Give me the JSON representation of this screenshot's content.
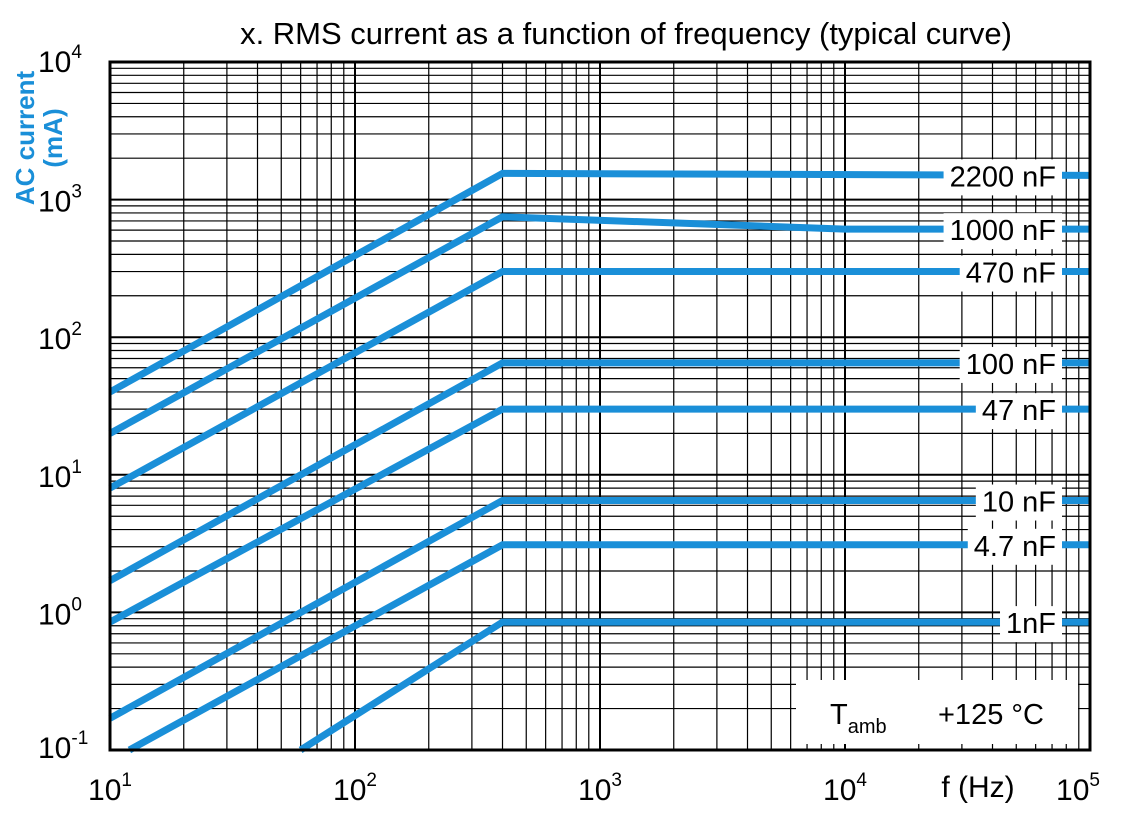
{
  "chart_data": {
    "type": "line",
    "title": "x. RMS current as a function of frequency (typical curve)",
    "ylabel": "AC current",
    "yunit": "(mA)",
    "xlabel": "f (Hz)",
    "xscale": "log",
    "yscale": "log",
    "xlim": [
      10,
      100000
    ],
    "ylim": [
      0.1,
      10000
    ],
    "grid": true,
    "series_color": "#1a8fd8",
    "x_ticks": [
      {
        "base": "10",
        "exp": "1"
      },
      {
        "base": "10",
        "exp": "2"
      },
      {
        "base": "10",
        "exp": "3"
      },
      {
        "base": "10",
        "exp": "4"
      },
      {
        "base": "10",
        "exp": "5"
      }
    ],
    "y_ticks": [
      {
        "base": "10",
        "exp": "-1"
      },
      {
        "base": "10",
        "exp": "0"
      },
      {
        "base": "10",
        "exp": "1"
      },
      {
        "base": "10",
        "exp": "2"
      },
      {
        "base": "10",
        "exp": "3"
      },
      {
        "base": "10",
        "exp": "4"
      }
    ],
    "annotation": {
      "symbol": "T",
      "subscript": "amb",
      "value": "+125 °C"
    },
    "series": [
      {
        "name": "2200 nF",
        "points": [
          [
            10,
            40
          ],
          [
            400,
            1550
          ],
          [
            100000,
            1500
          ]
        ]
      },
      {
        "name": "1000 nF",
        "points": [
          [
            10,
            20
          ],
          [
            400,
            750
          ],
          [
            10000,
            610
          ],
          [
            100000,
            610
          ]
        ]
      },
      {
        "name": "470 nF",
        "points": [
          [
            10,
            8
          ],
          [
            400,
            300
          ],
          [
            100000,
            300
          ]
        ]
      },
      {
        "name": "100 nF",
        "points": [
          [
            10,
            1.7
          ],
          [
            400,
            65
          ],
          [
            100000,
            65
          ]
        ]
      },
      {
        "name": "47 nF",
        "points": [
          [
            10,
            0.85
          ],
          [
            400,
            30
          ],
          [
            100000,
            30
          ]
        ]
      },
      {
        "name": "10 nF",
        "points": [
          [
            10,
            0.17
          ],
          [
            400,
            6.5
          ],
          [
            100000,
            6.5
          ]
        ]
      },
      {
        "name": "4.7 nF",
        "points": [
          [
            12,
            0.1
          ],
          [
            400,
            3.1
          ],
          [
            100000,
            3.1
          ]
        ]
      },
      {
        "name": "1nF",
        "points": [
          [
            60,
            0.1
          ],
          [
            400,
            0.85
          ],
          [
            100000,
            0.85
          ]
        ]
      }
    ]
  }
}
